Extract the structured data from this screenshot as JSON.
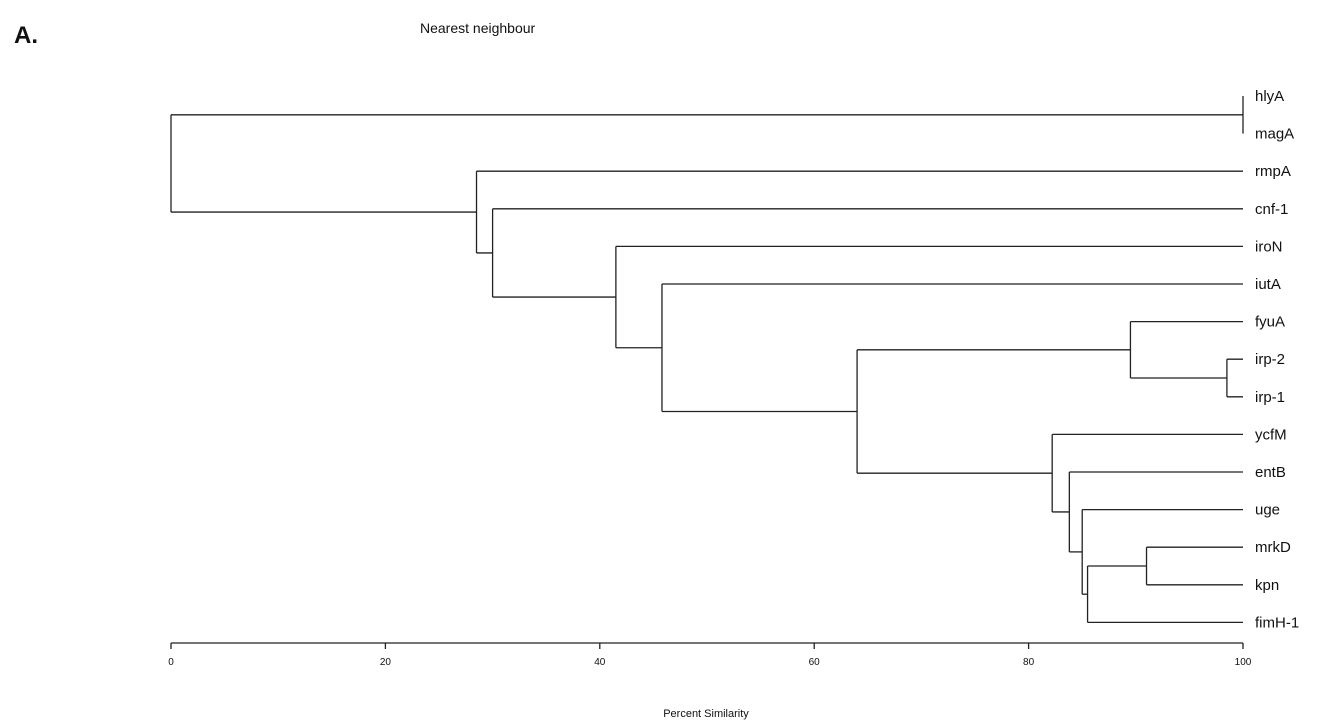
{
  "panel_label": "A.",
  "chart_data": {
    "type": "dendrogram",
    "title": "Nearest neighbour",
    "xlabel": "Percent Similarity",
    "xlim": [
      0,
      100
    ],
    "xticks": [
      0,
      20,
      40,
      60,
      80,
      100
    ],
    "leaves": [
      "hlyA",
      "magA",
      "rmpA",
      "cnf-1",
      "iroN",
      "iutA",
      "fyuA",
      "irp-2",
      "irp-1",
      "ycfM",
      "entB",
      "uge",
      "mrkD",
      "kpn",
      "fimH-1"
    ],
    "merges": [
      {
        "id": "n_hm",
        "children": [
          "hlyA",
          "magA"
        ],
        "similarity": 100
      },
      {
        "id": "n_i21",
        "children": [
          "irp-2",
          "irp-1"
        ],
        "similarity": 98.5
      },
      {
        "id": "n_fyu",
        "children": [
          "fyuA",
          "n_i21"
        ],
        "similarity": 89.5
      },
      {
        "id": "n_mk",
        "children": [
          "mrkD",
          "kpn"
        ],
        "similarity": 91
      },
      {
        "id": "n_fim",
        "children": [
          "n_mk",
          "fimH-1"
        ],
        "similarity": 85.5
      },
      {
        "id": "n_uge",
        "children": [
          "uge",
          "n_fim"
        ],
        "similarity": 85
      },
      {
        "id": "n_ent",
        "children": [
          "entB",
          "n_uge"
        ],
        "similarity": 83.8
      },
      {
        "id": "n_ycf",
        "children": [
          "ycfM",
          "n_ent"
        ],
        "similarity": 82.2
      },
      {
        "id": "n_big",
        "children": [
          "n_fyu",
          "n_ycf"
        ],
        "similarity": 64
      },
      {
        "id": "n_iut",
        "children": [
          "iutA",
          "n_big"
        ],
        "similarity": 45.8
      },
      {
        "id": "n_iro",
        "children": [
          "iroN",
          "n_iut"
        ],
        "similarity": 41.5
      },
      {
        "id": "n_cnf",
        "children": [
          "cnf-1",
          "n_iro"
        ],
        "similarity": 30
      },
      {
        "id": "n_rmp",
        "children": [
          "rmpA",
          "n_cnf"
        ],
        "similarity": 28.5
      },
      {
        "id": "root",
        "children": [
          "n_hm",
          "n_rmp"
        ],
        "similarity": 0
      }
    ]
  }
}
